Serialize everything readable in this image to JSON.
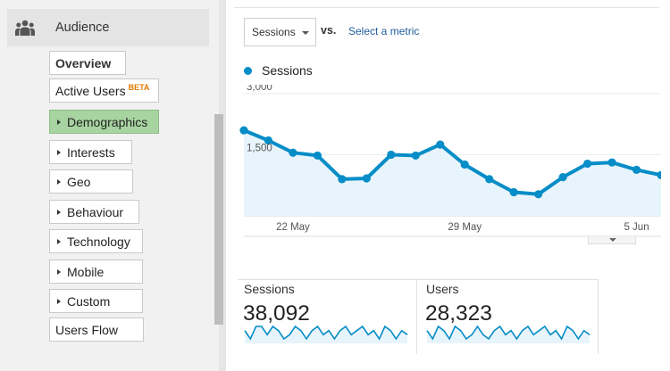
{
  "sidebar": {
    "section": {
      "label": "Audience",
      "icon": "users-icon"
    },
    "items": [
      {
        "label": "Overview",
        "has_arrow": false,
        "active": false,
        "bold": true
      },
      {
        "label": "Active Users",
        "badge": "BETA",
        "has_arrow": false,
        "active": false
      },
      {
        "label": "Demographics",
        "has_arrow": true,
        "active": true
      },
      {
        "label": "Interests",
        "has_arrow": true,
        "active": false
      },
      {
        "label": "Geo",
        "has_arrow": true,
        "active": false
      },
      {
        "label": "Behaviour",
        "has_arrow": true,
        "active": false
      },
      {
        "label": "Technology",
        "has_arrow": true,
        "active": false
      },
      {
        "label": "Mobile",
        "has_arrow": true,
        "active": false
      },
      {
        "label": "Custom",
        "has_arrow": true,
        "active": false
      },
      {
        "label": "Users Flow",
        "has_arrow": false,
        "active": false
      }
    ]
  },
  "toolbar": {
    "metric_select": "Sessions",
    "vs_label": "vs.",
    "select_metric_link": "Select a metric"
  },
  "legend": {
    "label": "Sessions",
    "color": "#058dc7"
  },
  "chart_data": {
    "type": "area",
    "series": [
      {
        "name": "Sessions",
        "values": [
          2100,
          1850,
          1550,
          1480,
          900,
          920,
          1500,
          1480,
          1750,
          1260,
          900,
          580,
          530,
          950,
          1280,
          1310,
          1130,
          1000
        ]
      }
    ],
    "y_ticks": [
      {
        "value": 3000,
        "label": "3,000"
      },
      {
        "value": 1500,
        "label": "1,500"
      }
    ],
    "x_ticks": [
      {
        "index": 2,
        "label": "22 May"
      },
      {
        "index": 9,
        "label": "29 May"
      },
      {
        "index": 16,
        "label": "5 Jun"
      }
    ],
    "ylim": [
      0,
      3000
    ],
    "color": "#058dc7",
    "fill": "#e8f4fb",
    "grid": true
  },
  "metrics": [
    {
      "title": "Sessions",
      "value": "38,092",
      "spark": [
        5,
        3,
        6,
        6,
        4,
        6,
        5,
        3,
        4,
        6,
        5,
        3,
        5,
        6,
        4,
        5,
        3,
        5,
        6,
        4,
        5,
        6,
        4,
        5,
        3,
        6,
        5,
        3,
        5,
        4
      ]
    },
    {
      "title": "Users",
      "value": "28,323",
      "spark": [
        5,
        3,
        6,
        5,
        3,
        6,
        5,
        3,
        4,
        6,
        4,
        3,
        5,
        6,
        4,
        5,
        3,
        5,
        6,
        4,
        5,
        6,
        4,
        5,
        3,
        6,
        5,
        3,
        5,
        4
      ]
    }
  ]
}
